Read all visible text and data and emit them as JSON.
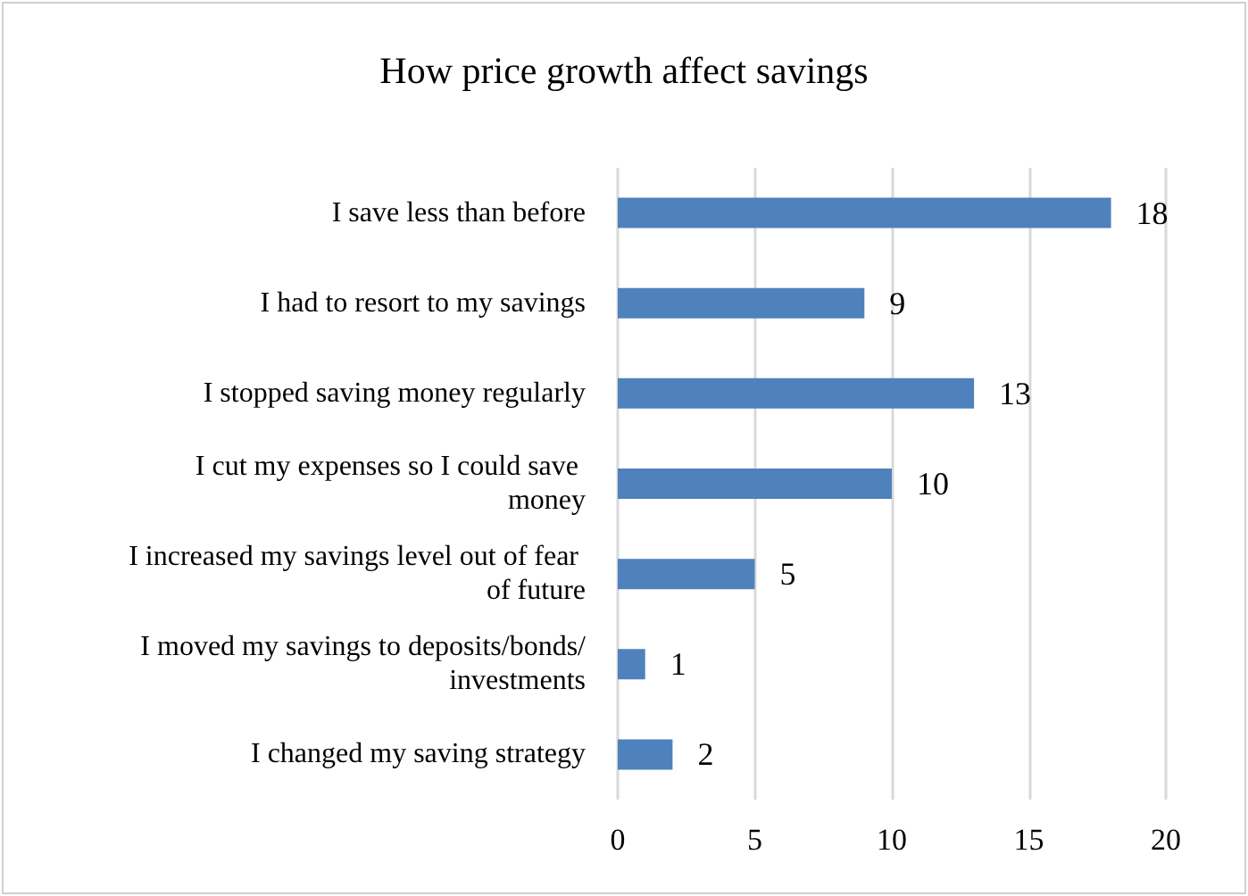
{
  "chart_data": {
    "type": "bar",
    "orientation": "horizontal",
    "title": "How price growth affect savings",
    "categories": [
      "I save less than before",
      "I had to resort to my savings",
      "I stopped saving money regularly",
      "I cut my expenses so I could save money",
      "I increased my savings level out of fear of future",
      "I moved my savings to deposits/bonds/investments",
      "I changed my saving strategy"
    ],
    "values": [
      18,
      9,
      13,
      10,
      5,
      1,
      2
    ],
    "color": "#4f81bd",
    "xlim": [
      0,
      20
    ],
    "xticks": [
      0,
      5,
      10,
      15,
      20
    ],
    "grid": "x",
    "data_labels": true
  }
}
